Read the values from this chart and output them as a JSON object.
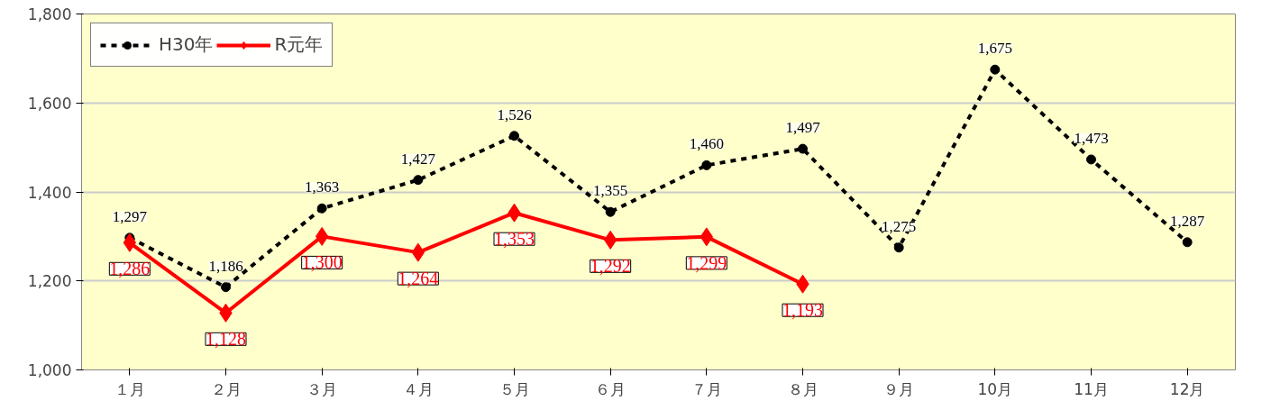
{
  "chart_data": {
    "type": "line",
    "categories": [
      "１月",
      "２月",
      "３月",
      "４月",
      "５月",
      "６月",
      "７月",
      "８月",
      "９月",
      "10月",
      "11月",
      "12月"
    ],
    "series": [
      {
        "name": "H30年",
        "color": "#000000",
        "line_style": "dashed",
        "marker": "circle",
        "values": [
          1297,
          1186,
          1363,
          1427,
          1526,
          1355,
          1460,
          1497,
          1275,
          1675,
          1473,
          1287
        ],
        "value_labels": [
          "1,297",
          "1,186",
          "1,363",
          "1,427",
          "1,526",
          "1,355",
          "1,460",
          "1,497",
          "1,275",
          "1,675",
          "1,473",
          "1,287"
        ]
      },
      {
        "name": "R元年",
        "color": "#ff0000",
        "line_style": "solid",
        "marker": "diamond",
        "values": [
          1286,
          1128,
          1300,
          1264,
          1353,
          1292,
          1299,
          1193,
          null,
          null,
          null,
          null
        ],
        "value_labels": [
          "1,286",
          "1,128",
          "1,300",
          "1,264",
          "1,353",
          "1,292",
          "1,299",
          "1,193",
          null,
          null,
          null,
          null
        ]
      }
    ],
    "ylim": [
      1000,
      1800
    ],
    "yticks": [
      {
        "value": 1000,
        "label": "1,000"
      },
      {
        "value": 1200,
        "label": "1,200"
      },
      {
        "value": 1400,
        "label": "1,400"
      },
      {
        "value": 1600,
        "label": "1,600"
      },
      {
        "value": 1800,
        "label": "1,800"
      }
    ],
    "grid": "y",
    "legend": "top left"
  }
}
